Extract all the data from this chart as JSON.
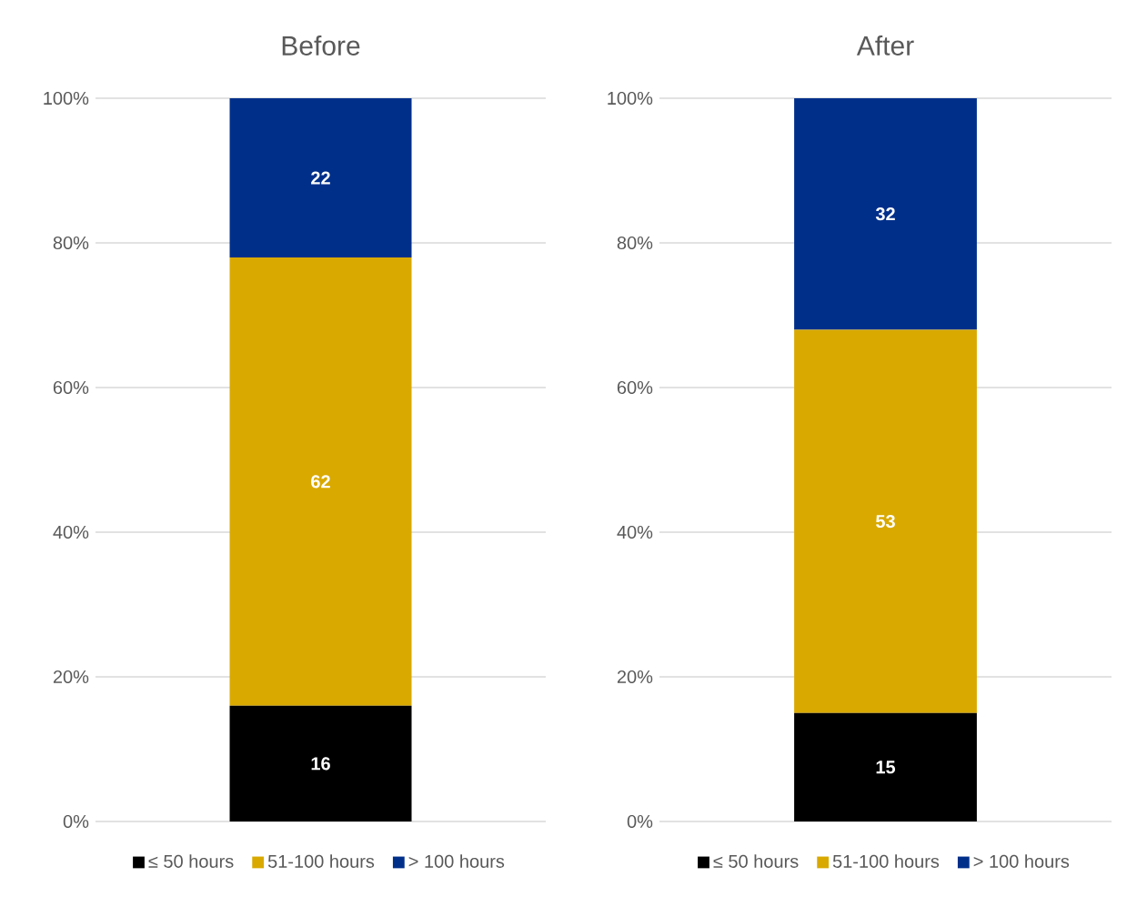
{
  "chart_data": [
    {
      "type": "bar",
      "title": "Before",
      "stacked": true,
      "categories": [
        null
      ],
      "ylim": [
        0,
        100
      ],
      "yticks": [
        {
          "value": 0,
          "label": "0%"
        },
        {
          "value": 20,
          "label": "20%"
        },
        {
          "value": 40,
          "label": "40%"
        },
        {
          "value": 60,
          "label": "60%"
        },
        {
          "value": 80,
          "label": "80%"
        },
        {
          "value": 100,
          "label": "100%"
        }
      ],
      "grid": "y",
      "legend": "bottom",
      "data_labels": true,
      "series": [
        {
          "name": "≤ 50 hours",
          "color": "#000000",
          "values": [
            16
          ]
        },
        {
          "name": "51-100 hours",
          "color": "#d9a900",
          "values": [
            62
          ]
        },
        {
          "name": "> 100 hours",
          "color": "#002f8a",
          "values": [
            22
          ]
        }
      ]
    },
    {
      "type": "bar",
      "title": "After",
      "stacked": true,
      "categories": [
        null
      ],
      "ylim": [
        0,
        100
      ],
      "yticks": [
        {
          "value": 0,
          "label": "0%"
        },
        {
          "value": 20,
          "label": "20%"
        },
        {
          "value": 40,
          "label": "40%"
        },
        {
          "value": 60,
          "label": "60%"
        },
        {
          "value": 80,
          "label": "80%"
        },
        {
          "value": 100,
          "label": "100%"
        }
      ],
      "grid": "y",
      "legend": "bottom",
      "data_labels": true,
      "series": [
        {
          "name": "≤ 50 hours",
          "color": "#000000",
          "values": [
            15
          ]
        },
        {
          "name": "51-100 hours",
          "color": "#d9a900",
          "values": [
            53
          ]
        },
        {
          "name": "> 100 hours",
          "color": "#002f8a",
          "values": [
            32
          ]
        }
      ]
    }
  ]
}
